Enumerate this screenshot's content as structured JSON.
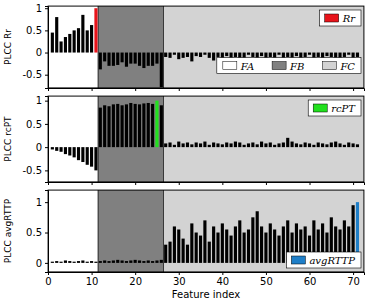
{
  "chart_data": [
    {
      "type": "bar",
      "y_label": "PLCC Rr",
      "x": [
        1,
        2,
        3,
        4,
        5,
        6,
        7,
        8,
        9,
        10,
        11,
        12,
        13,
        14,
        15,
        16,
        17,
        18,
        19,
        20,
        21,
        22,
        23,
        24,
        25,
        26,
        27,
        28,
        29,
        30,
        31,
        32,
        33,
        34,
        35,
        36,
        37,
        38,
        39,
        40,
        41,
        42,
        43,
        44,
        45,
        46,
        47,
        48,
        49,
        50,
        51,
        52,
        53,
        54,
        55,
        56,
        57,
        58,
        59,
        60,
        61,
        62,
        63,
        64,
        65,
        66,
        67,
        68,
        69,
        70,
        71
      ],
      "xlim": [
        0,
        72.5
      ],
      "xticks": [
        0,
        10,
        20,
        30,
        40,
        50,
        60,
        70
      ],
      "ylim": [
        -0.8,
        1.05
      ],
      "yticks": [
        -0.5,
        0,
        0.5,
        1
      ],
      "tick_labels": "y",
      "legend": "upper right",
      "regions": [
        {
          "name": "FA",
          "color": "#ffffff",
          "range": [
            0,
            11.5
          ]
        },
        {
          "name": "FB",
          "color": "#808080",
          "range": [
            11.5,
            26.5
          ]
        },
        {
          "name": "FC",
          "color": "#d3d3d3",
          "range": [
            26.5,
            72.5
          ]
        }
      ],
      "series": [
        {
          "color": "#000000",
          "values": [
            0.45,
            0.8,
            0.25,
            0.35,
            0.42,
            0.5,
            0.55,
            0.85,
            0.5,
            0.62,
            null,
            -0.38,
            -0.2,
            -0.3,
            -0.3,
            -0.28,
            -0.22,
            -0.32,
            -0.25,
            -0.25,
            -0.3,
            -0.35,
            -0.3,
            -0.3,
            -0.25,
            -0.78,
            -0.1,
            -0.12,
            -0.05,
            -0.15,
            -0.12,
            -0.1,
            -0.2,
            -0.08,
            -0.1,
            -0.05,
            -0.12,
            -0.18,
            -0.1,
            -0.15,
            -0.08,
            -0.12,
            -0.1,
            -0.2,
            -0.15,
            -0.05,
            -0.1,
            -0.12,
            -0.08,
            -0.15,
            -0.1,
            -0.12,
            -0.05,
            -0.18,
            -0.1,
            -0.12,
            -0.08,
            -0.15,
            -0.1,
            -0.05,
            -0.12,
            -0.1,
            -0.15,
            -0.08,
            -0.1,
            -0.12,
            -0.2,
            -0.1,
            -0.05,
            -0.12,
            -0.1
          ]
        },
        {
          "name": "Rr",
          "color": "#e8141b",
          "values": [
            null,
            null,
            null,
            null,
            null,
            null,
            null,
            null,
            null,
            null,
            1,
            null,
            null,
            null,
            null,
            null,
            null,
            null,
            null,
            null,
            null,
            null,
            null,
            null,
            null,
            null,
            null,
            null,
            null,
            null,
            null,
            null,
            null,
            null,
            null,
            null,
            null,
            null,
            null,
            null,
            null,
            null,
            null,
            null,
            null,
            null,
            null,
            null,
            null,
            null,
            null,
            null,
            null,
            null,
            null,
            null,
            null,
            null,
            null,
            null,
            null,
            null,
            null,
            null,
            null,
            null,
            null,
            null,
            null,
            null,
            null
          ]
        }
      ]
    },
    {
      "type": "bar",
      "y_label": "PLCC rcPT",
      "x": [
        1,
        2,
        3,
        4,
        5,
        6,
        7,
        8,
        9,
        10,
        11,
        12,
        13,
        14,
        15,
        16,
        17,
        18,
        19,
        20,
        21,
        22,
        23,
        24,
        25,
        26,
        27,
        28,
        29,
        30,
        31,
        32,
        33,
        34,
        35,
        36,
        37,
        38,
        39,
        40,
        41,
        42,
        43,
        44,
        45,
        46,
        47,
        48,
        49,
        50,
        51,
        52,
        53,
        54,
        55,
        56,
        57,
        58,
        59,
        60,
        61,
        62,
        63,
        64,
        65,
        66,
        67,
        68,
        69,
        70,
        71
      ],
      "xlim": [
        0,
        72.5
      ],
      "xticks": [
        0,
        10,
        20,
        30,
        40,
        50,
        60,
        70
      ],
      "ylim": [
        -0.75,
        1.1
      ],
      "yticks": [
        -0.5,
        0,
        0.5,
        1
      ],
      "tick_labels": "y",
      "legend": "upper right",
      "series": [
        {
          "color": "#000000",
          "values": [
            -0.05,
            -0.08,
            -0.1,
            -0.15,
            -0.18,
            -0.22,
            -0.28,
            -0.32,
            -0.38,
            -0.42,
            -0.5,
            0.85,
            0.9,
            0.88,
            0.92,
            0.93,
            0.9,
            0.92,
            0.95,
            0.93,
            0.92,
            0.94,
            0.95,
            0.93,
            null,
            0.9,
            0.08,
            0.1,
            0.05,
            0.12,
            0.08,
            0.1,
            0.06,
            0.1,
            0.08,
            0.12,
            0.05,
            0.1,
            0.08,
            0.06,
            0.1,
            0.08,
            0.12,
            0.1,
            0.05,
            0.08,
            0.1,
            0.06,
            0.12,
            0.08,
            0.1,
            0.05,
            0.08,
            0.1,
            0.2,
            0.12,
            0.08,
            0.06,
            0.1,
            0.08,
            0.05,
            0.1,
            0.08,
            0.06,
            0.1,
            0.12,
            0.08,
            0.05,
            0.1,
            0.08,
            0.06
          ]
        },
        {
          "name": "rcPT",
          "color": "#22e01e",
          "values": [
            null,
            null,
            null,
            null,
            null,
            null,
            null,
            null,
            null,
            null,
            null,
            null,
            null,
            null,
            null,
            null,
            null,
            null,
            null,
            null,
            null,
            null,
            null,
            null,
            1,
            null,
            null,
            null,
            null,
            null,
            null,
            null,
            null,
            null,
            null,
            null,
            null,
            null,
            null,
            null,
            null,
            null,
            null,
            null,
            null,
            null,
            null,
            null,
            null,
            null,
            null,
            null,
            null,
            null,
            null,
            null,
            null,
            null,
            null,
            null,
            null,
            null,
            null,
            null,
            null,
            null,
            null,
            null,
            null,
            null,
            null
          ]
        }
      ]
    },
    {
      "type": "bar",
      "y_label": "PLCC avgRTTP",
      "x_label": "Feature index",
      "x": [
        1,
        2,
        3,
        4,
        5,
        6,
        7,
        8,
        9,
        10,
        11,
        12,
        13,
        14,
        15,
        16,
        17,
        18,
        19,
        20,
        21,
        22,
        23,
        24,
        25,
        26,
        27,
        28,
        29,
        30,
        31,
        32,
        33,
        34,
        35,
        36,
        37,
        38,
        39,
        40,
        41,
        42,
        43,
        44,
        45,
        46,
        47,
        48,
        49,
        50,
        51,
        52,
        53,
        54,
        55,
        56,
        57,
        58,
        59,
        60,
        61,
        62,
        63,
        64,
        65,
        66,
        67,
        68,
        69,
        70,
        71
      ],
      "xlim": [
        0,
        72.5
      ],
      "xticks": [
        0,
        10,
        20,
        30,
        40,
        50,
        60,
        70
      ],
      "ylim": [
        -0.15,
        1.2
      ],
      "yticks": [
        0,
        0.5,
        1
      ],
      "legend": "lower right",
      "series": [
        {
          "color": "#000000",
          "values": [
            0.02,
            0.03,
            0.02,
            0.04,
            0.03,
            0.02,
            0.03,
            0.04,
            0.02,
            0.03,
            0.02,
            0.03,
            0.04,
            0.03,
            0.04,
            0.05,
            0.04,
            0.03,
            0.04,
            0.05,
            0.04,
            0.03,
            0.04,
            0.03,
            0.04,
            0.05,
            0.3,
            0.35,
            0.6,
            0.55,
            0.4,
            0.3,
            0.65,
            0.5,
            0.45,
            0.7,
            0.35,
            0.6,
            0.5,
            0.65,
            0.55,
            0.45,
            0.6,
            0.7,
            0.5,
            0.55,
            0.75,
            0.85,
            0.6,
            0.5,
            0.65,
            0.55,
            0.45,
            0.6,
            0.7,
            0.5,
            0.65,
            0.55,
            0.6,
            0.45,
            0.7,
            0.55,
            0.65,
            0.5,
            0.75,
            0.6,
            0.55,
            0.7,
            0.6,
            0.95,
            null
          ]
        },
        {
          "name": "avgRTTP",
          "color": "#1f7fc8",
          "values": [
            null,
            null,
            null,
            null,
            null,
            null,
            null,
            null,
            null,
            null,
            null,
            null,
            null,
            null,
            null,
            null,
            null,
            null,
            null,
            null,
            null,
            null,
            null,
            null,
            null,
            null,
            null,
            null,
            null,
            null,
            null,
            null,
            null,
            null,
            null,
            null,
            null,
            null,
            null,
            null,
            null,
            null,
            null,
            null,
            null,
            null,
            null,
            null,
            null,
            null,
            null,
            null,
            null,
            null,
            null,
            null,
            null,
            null,
            null,
            null,
            null,
            null,
            null,
            null,
            null,
            null,
            null,
            null,
            null,
            null,
            1
          ]
        }
      ]
    }
  ]
}
